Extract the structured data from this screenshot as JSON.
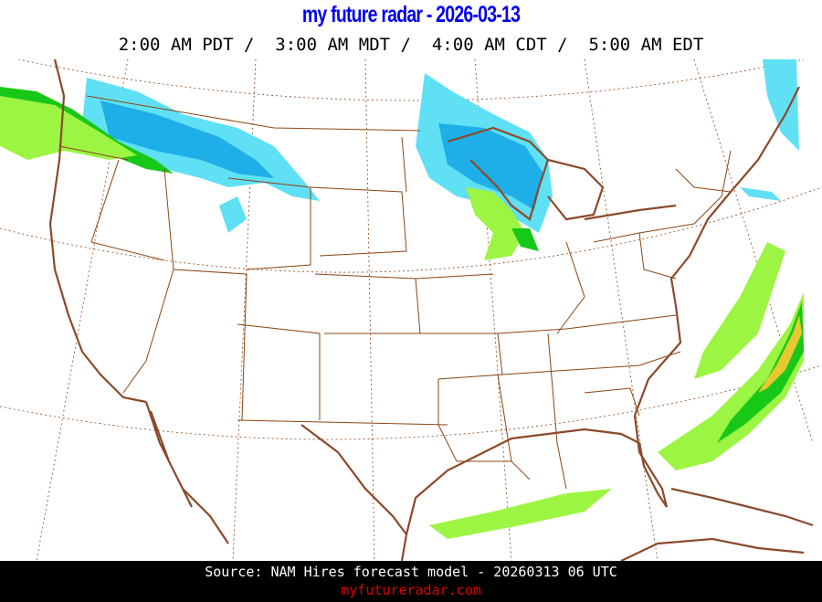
{
  "header": {
    "title": "my future radar - 2026-03-13",
    "times": "2:00 AM PDT /  3:00 AM MDT /  4:00 AM CDT /  5:00 AM EDT"
  },
  "footer": {
    "source": "Source: NAM Hires forecast model - 20260313 06 UTC",
    "site": "myfutureradar.com"
  },
  "colors": {
    "title": "#0000ee",
    "boundary": "#8b4513",
    "coast": "#8b4a2b",
    "snow_light": "#5fe0f5",
    "snow_heavy": "#1eaee8",
    "rain_light": "#9bf542",
    "rain_moderate": "#18c818",
    "rain_heavy": "#e8c830",
    "site": "#e00000"
  }
}
